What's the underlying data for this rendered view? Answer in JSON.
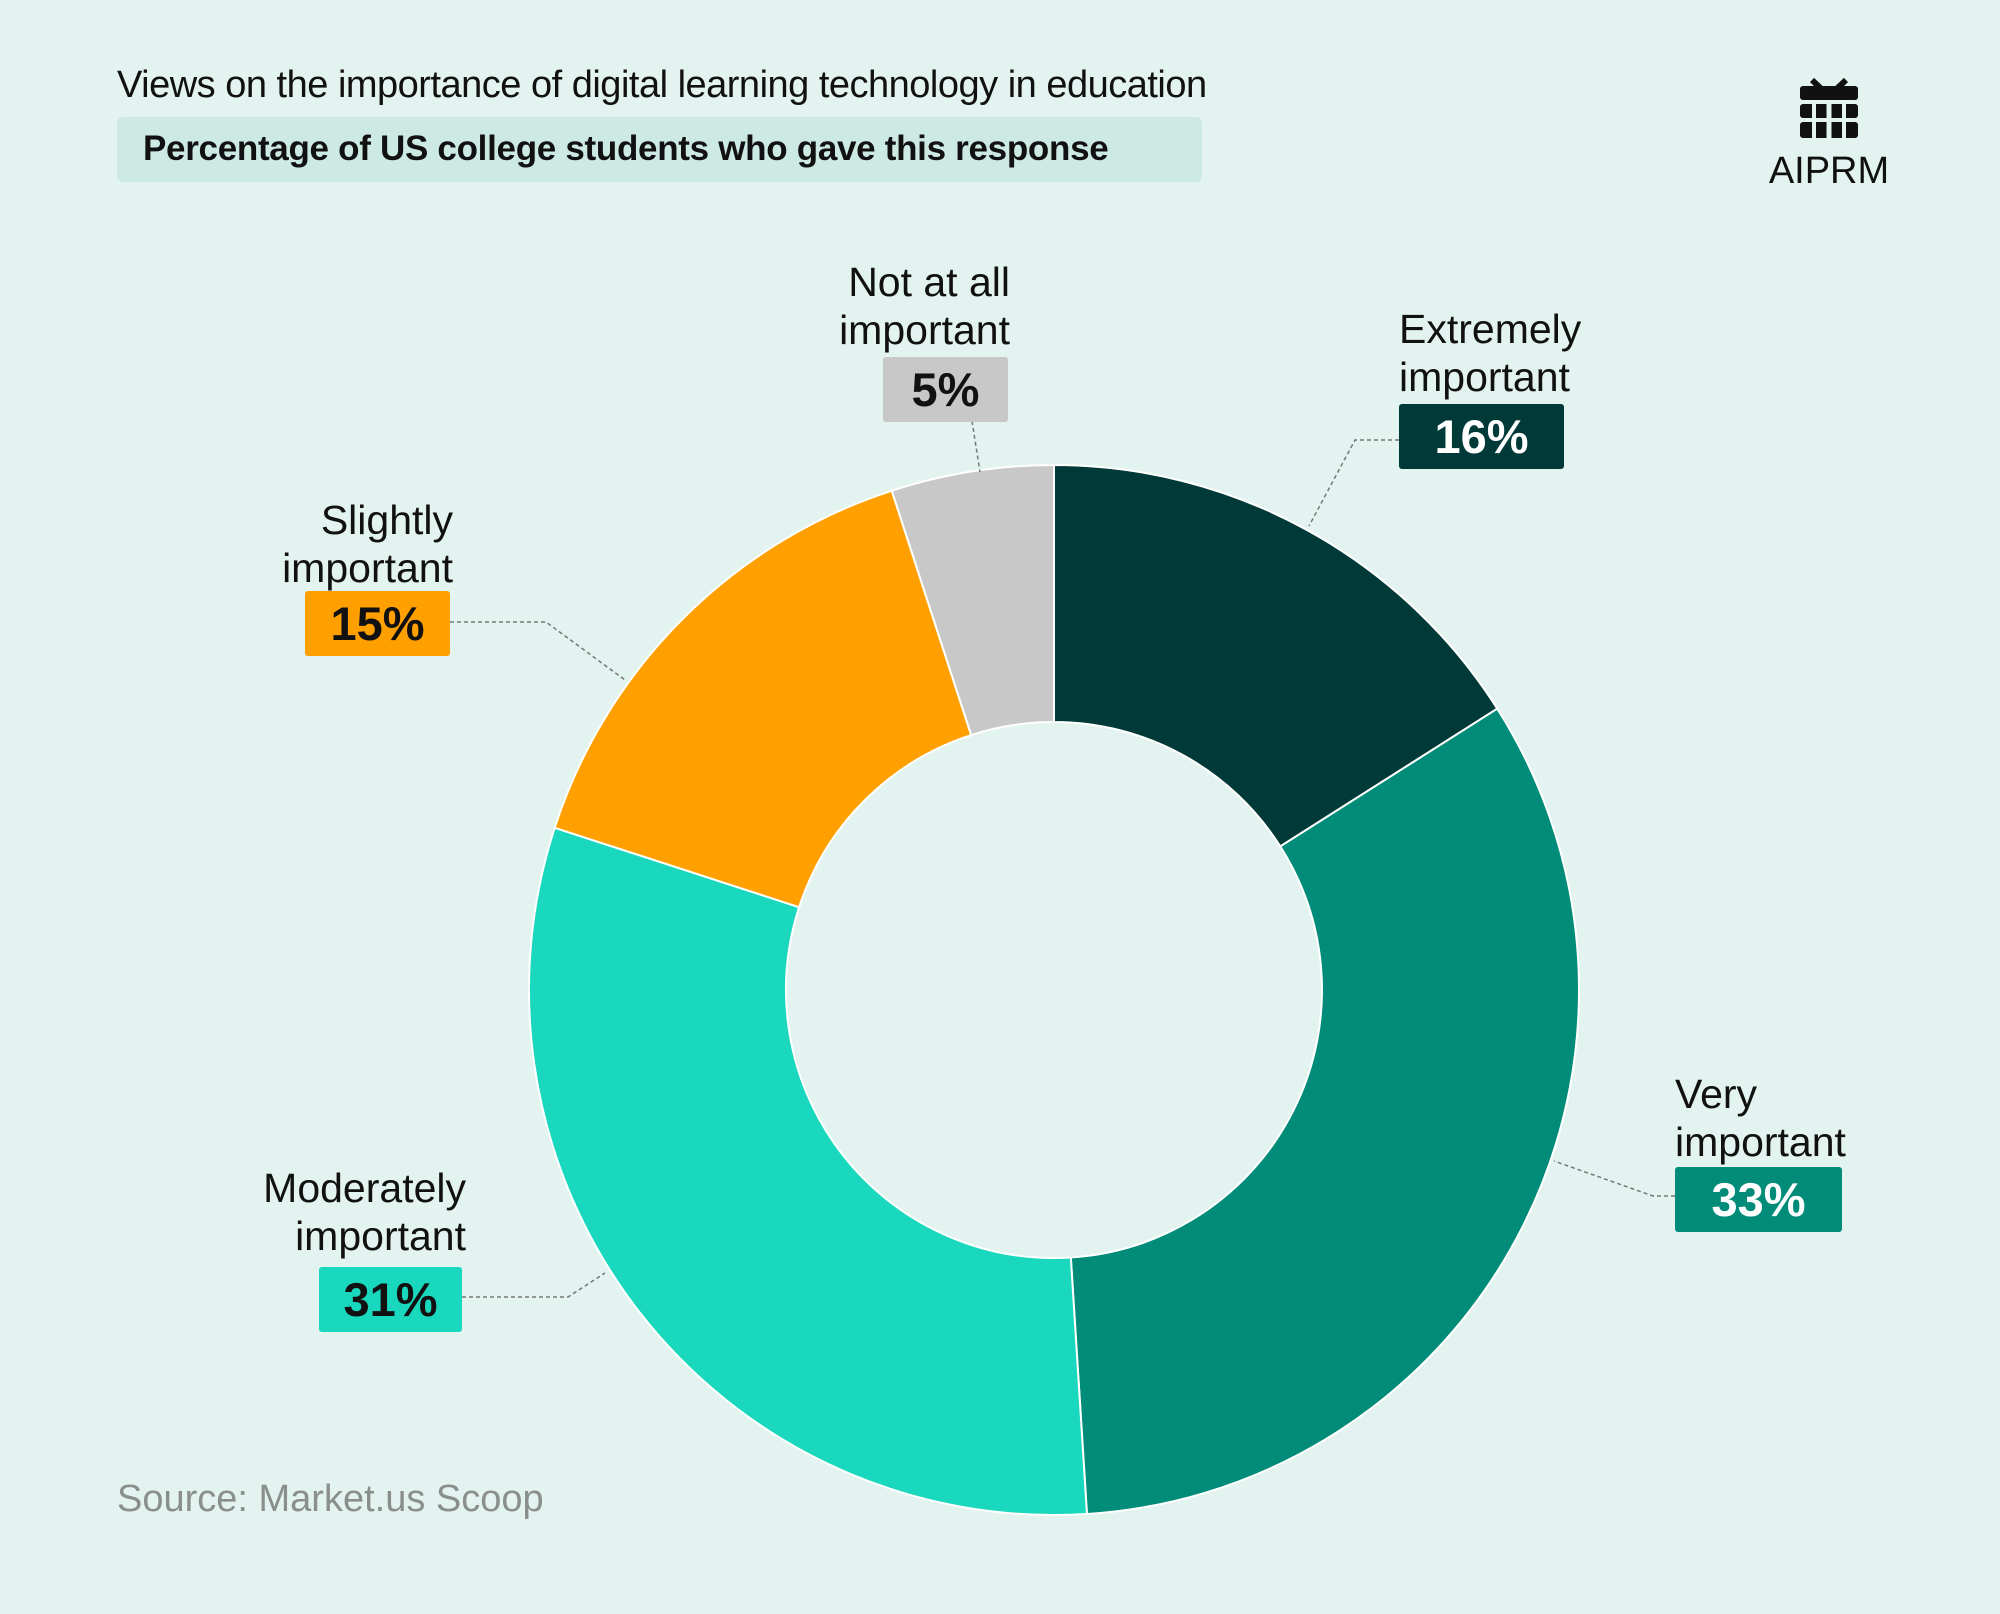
{
  "title": "Views on the importance of digital learning technology in education",
  "subtitle": "Percentage of US college students who gave this response",
  "brand": "AIPRM",
  "source": "Source: Market.us Scoop",
  "chart_data": {
    "type": "donut",
    "categories": [
      "Extremely important",
      "Very important",
      "Moderately important",
      "Slightly important",
      "Not at all important"
    ],
    "values": [
      16,
      33,
      31,
      15,
      5
    ],
    "value_labels": [
      "16%",
      "33%",
      "31%",
      "15%",
      "5%"
    ],
    "colors": [
      "#003a38",
      "#008c78",
      "#1ad8bd",
      "#ff9f00",
      "#c8c8c8"
    ]
  }
}
